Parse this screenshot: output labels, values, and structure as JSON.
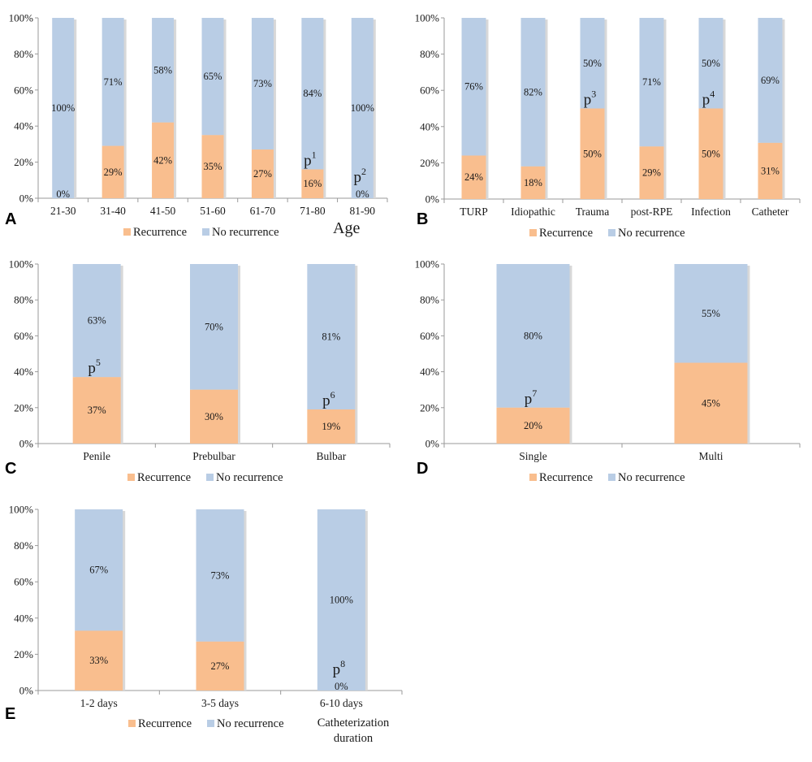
{
  "colors": {
    "recurrence": "#f9be8e",
    "no_recurrence": "#b9cde5",
    "axis": "#9a9a9a",
    "text": "#1a1a1a"
  },
  "chart_data": [
    {
      "type": "bar",
      "stacked": "percent",
      "panel_label": "A",
      "categories": [
        "21-30",
        "31-40",
        "41-50",
        "51-60",
        "61-70",
        "71-80",
        "81-90"
      ],
      "series": [
        {
          "name": "Recurrence",
          "values": [
            0,
            29,
            42,
            35,
            27,
            16,
            0
          ]
        },
        {
          "name": "No recurrence",
          "values": [
            100,
            71,
            58,
            65,
            73,
            84,
            100
          ]
        }
      ],
      "xlabel": "Age",
      "ylim": [
        0,
        100
      ],
      "yticks": [
        "0%",
        "20%",
        "40%",
        "60%",
        "80%",
        "100%"
      ],
      "annotations": [
        {
          "text": "p",
          "sup": "1",
          "category": "71-80"
        },
        {
          "text": "p",
          "sup": "2",
          "category": "81-90"
        }
      ],
      "legend": "bottom"
    },
    {
      "type": "bar",
      "stacked": "percent",
      "panel_label": "B",
      "categories": [
        "TURP",
        "Idiopathic",
        "Trauma",
        "post-RPE",
        "Infection",
        "Catheter"
      ],
      "series": [
        {
          "name": "Recurrence",
          "values": [
            24,
            18,
            50,
            29,
            50,
            31
          ]
        },
        {
          "name": "No recurrence",
          "values": [
            76,
            82,
            50,
            71,
            50,
            69
          ]
        }
      ],
      "xlabel": "",
      "ylim": [
        0,
        100
      ],
      "yticks": [
        "0%",
        "20%",
        "40%",
        "60%",
        "80%",
        "100%"
      ],
      "annotations": [
        {
          "text": "p",
          "sup": "3",
          "category": "Trauma"
        },
        {
          "text": "p",
          "sup": "4",
          "category": "Infection"
        }
      ],
      "legend": "bottom"
    },
    {
      "type": "bar",
      "stacked": "percent",
      "panel_label": "C",
      "categories": [
        "Penile",
        "Prebulbar",
        "Bulbar"
      ],
      "series": [
        {
          "name": "Recurrence",
          "values": [
            37,
            30,
            19
          ]
        },
        {
          "name": "No recurrence",
          "values": [
            63,
            70,
            81
          ]
        }
      ],
      "xlabel": "",
      "ylim": [
        0,
        100
      ],
      "yticks": [
        "0%",
        "20%",
        "40%",
        "60%",
        "80%",
        "100%"
      ],
      "annotations": [
        {
          "text": "p",
          "sup": "5",
          "category": "Penile"
        },
        {
          "text": "p",
          "sup": "6",
          "category": "Bulbar"
        }
      ],
      "legend": "bottom"
    },
    {
      "type": "bar",
      "stacked": "percent",
      "panel_label": "D",
      "categories": [
        "Single",
        "Multi"
      ],
      "series": [
        {
          "name": "Recurrence",
          "values": [
            20,
            45
          ]
        },
        {
          "name": "No recurrence",
          "values": [
            80,
            55
          ]
        }
      ],
      "xlabel": "",
      "ylim": [
        0,
        100
      ],
      "yticks": [
        "0%",
        "20%",
        "40%",
        "60%",
        "80%",
        "100%"
      ],
      "annotations": [
        {
          "text": "p",
          "sup": "7",
          "category": "Single"
        }
      ],
      "legend": "bottom"
    },
    {
      "type": "bar",
      "stacked": "percent",
      "panel_label": "E",
      "categories": [
        "1-2 days",
        "3-5 days",
        "6-10 days"
      ],
      "series": [
        {
          "name": "Recurrence",
          "values": [
            33,
            27,
            0
          ]
        },
        {
          "name": "No recurrence",
          "values": [
            67,
            73,
            100
          ]
        }
      ],
      "xlabel": "Catheterization duration",
      "ylim": [
        0,
        100
      ],
      "yticks": [
        "0%",
        "20%",
        "40%",
        "60%",
        "80%",
        "100%"
      ],
      "annotations": [
        {
          "text": "p",
          "sup": "8",
          "category": "6-10 days"
        }
      ],
      "legend": "bottom"
    }
  ]
}
